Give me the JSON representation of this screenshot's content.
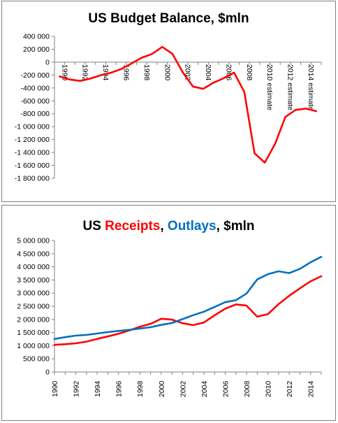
{
  "chart_data": [
    {
      "type": "line",
      "title": "US Budget Balance, $mln",
      "xlabel": "",
      "ylabel": "",
      "ylim": [
        -1800000,
        400000
      ],
      "y_ticks": [
        400000,
        200000,
        0,
        -200000,
        -400000,
        -600000,
        -800000,
        -1000000,
        -1200000,
        -1400000,
        -1600000,
        -1800000
      ],
      "y_tick_labels": [
        "400 000",
        "200 000",
        "0",
        "-200 000",
        "-400 000",
        "-600 000",
        "-800 000",
        "-1 000 000",
        "-1 200 000",
        "-1 400 000",
        "-1 600 000",
        "-1 800 000"
      ],
      "categories": [
        "1990",
        "1991",
        "1992",
        "1993",
        "1994",
        "1995",
        "1996",
        "1997",
        "1998",
        "1999",
        "2000",
        "2001",
        "2002",
        "2003",
        "2004",
        "2005",
        "2006",
        "2007",
        "2008",
        "2009",
        "2010 estimate",
        "2011",
        "2012 estimate",
        "2013",
        "2014 estimate",
        "2015"
      ],
      "x_tick_labels": [
        "1990",
        "1992",
        "1994",
        "1996",
        "1998",
        "2000",
        "2002",
        "2004",
        "2006",
        "2008",
        "2010 estimate",
        "2012 estimate",
        "2014 estimate"
      ],
      "grid": false,
      "legend": "none",
      "series": [
        {
          "color": "#ff0000",
          "values": [
            -221000,
            -269000,
            -290000,
            -255000,
            -203000,
            -164000,
            -107000,
            -22000,
            69000,
            126000,
            236000,
            128000,
            -158000,
            -378000,
            -413000,
            -318000,
            -248000,
            -161000,
            -459000,
            -1413000,
            -1556000,
            -1267000,
            -850000,
            -740000,
            -720000,
            -760000
          ]
        }
      ]
    },
    {
      "type": "line",
      "title_parts": [
        {
          "text": "US ",
          "color": "#000000"
        },
        {
          "text": "Receipts",
          "color": "#ff0000"
        },
        {
          "text": ", ",
          "color": "#000000"
        },
        {
          "text": "Outlays",
          "color": "#0070c0"
        },
        {
          "text": ", $mln",
          "color": "#000000"
        }
      ],
      "xlabel": "",
      "ylabel": "",
      "ylim": [
        0,
        5000000
      ],
      "y_ticks": [
        5000000,
        4500000,
        4000000,
        3500000,
        3000000,
        2500000,
        2000000,
        1500000,
        1000000,
        500000,
        0
      ],
      "y_tick_labels": [
        "5 000 000",
        "4 500 000",
        "4 000 000",
        "3 500 000",
        "3 000 000",
        "2 500 000",
        "2 000 000",
        "1 500 000",
        "1 000 000",
        "500 000",
        "0"
      ],
      "x": [
        1990,
        1991,
        1992,
        1993,
        1994,
        1995,
        1996,
        1997,
        1998,
        1999,
        2000,
        2001,
        2002,
        2003,
        2004,
        2005,
        2006,
        2007,
        2008,
        2009,
        2010,
        2011,
        2012,
        2013,
        2014,
        2015
      ],
      "x_tick_labels": [
        "1990",
        "1992",
        "1994",
        "1996",
        "1998",
        "2000",
        "2002",
        "2004",
        "2006",
        "2008",
        "2010",
        "2012",
        "2014"
      ],
      "grid": false,
      "legend": "none",
      "series": [
        {
          "name": "Receipts",
          "color": "#ff0000",
          "values": [
            1032000,
            1055000,
            1091000,
            1154000,
            1259000,
            1352000,
            1453000,
            1579000,
            1722000,
            1827000,
            2025000,
            1991000,
            1853000,
            1782000,
            1880000,
            2154000,
            2407000,
            2568000,
            2524000,
            2105000,
            2200000,
            2580000,
            2900000,
            3180000,
            3450000,
            3640000
          ]
        },
        {
          "name": "Outlays",
          "color": "#0070c0",
          "values": [
            1253000,
            1324000,
            1382000,
            1410000,
            1462000,
            1516000,
            1561000,
            1601000,
            1652000,
            1702000,
            1789000,
            1863000,
            2011000,
            2160000,
            2293000,
            2472000,
            2655000,
            2729000,
            2983000,
            3518000,
            3720000,
            3830000,
            3760000,
            3920000,
            4170000,
            4380000
          ]
        }
      ]
    }
  ]
}
